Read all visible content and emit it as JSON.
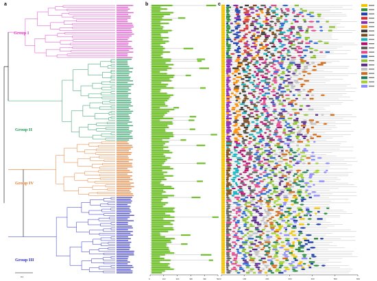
{
  "panels": {
    "a": "a",
    "b": "b",
    "c": "c"
  },
  "groups": [
    {
      "label": "Group I",
      "color": "#e040c8"
    },
    {
      "label": "Group II",
      "color": "#1f9a5a"
    },
    {
      "label": "Group IV",
      "color": "#e8782a"
    },
    {
      "label": "Group III",
      "color": "#2a2ad0"
    }
  ],
  "scale_bar": {
    "label": "0.1"
  },
  "gene_structure": {
    "exon_color": "#6fbf2a",
    "axis_ticks": [
      "0",
      "1kb",
      "2kb",
      "3kb",
      "4kb",
      "5kb"
    ]
  },
  "motif_axis": {
    "ticks": [
      "0",
      "100",
      "200",
      "300",
      "400",
      "500",
      "600"
    ]
  },
  "legend_colors": [
    "#f5c400",
    "#2a8a3c",
    "#1a3aa8",
    "#d03030",
    "#8a2ab0",
    "#ff8a00",
    "#3a3a3a",
    "#7a4a1a",
    "#14b0c0",
    "#b01070",
    "#606060",
    "#e04a8a",
    "#2a6ad0",
    "#8ac030",
    "#5a2a8a",
    "#c0c0c0",
    "#d06a1a",
    "#1a7a5a",
    "#a0d030",
    "#8a8aff"
  ]
}
